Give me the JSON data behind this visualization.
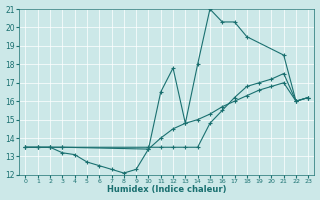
{
  "xlabel": "Humidex (Indice chaleur)",
  "xlim": [
    -0.5,
    23.5
  ],
  "ylim": [
    12,
    21
  ],
  "yticks": [
    12,
    13,
    14,
    15,
    16,
    17,
    18,
    19,
    20,
    21
  ],
  "xticks": [
    0,
    1,
    2,
    3,
    4,
    5,
    6,
    7,
    8,
    9,
    10,
    11,
    12,
    13,
    14,
    15,
    16,
    17,
    18,
    19,
    20,
    21,
    22,
    23
  ],
  "bg_color": "#cce8e8",
  "line_color": "#1a7070",
  "lines": [
    {
      "x": [
        0,
        1,
        2,
        3,
        10,
        11,
        12,
        13,
        14,
        15,
        16,
        17,
        18,
        21,
        22,
        23
      ],
      "y": [
        13.5,
        13.5,
        13.5,
        13.5,
        13.4,
        16.5,
        17.8,
        14.8,
        18.0,
        21.0,
        20.3,
        20.3,
        19.5,
        18.5,
        16.0,
        16.2
      ]
    },
    {
      "x": [
        0,
        1,
        2,
        3,
        10,
        11,
        12,
        13,
        14,
        15,
        16,
        17,
        18,
        19,
        20,
        21,
        22,
        23
      ],
      "y": [
        13.5,
        13.5,
        13.5,
        13.5,
        13.5,
        13.5,
        13.5,
        13.5,
        13.5,
        14.8,
        15.5,
        16.2,
        16.8,
        17.0,
        17.2,
        17.5,
        16.0,
        16.2
      ]
    },
    {
      "x": [
        0,
        1,
        2,
        3,
        4,
        5,
        6,
        7,
        8,
        9,
        10,
        11,
        12,
        13,
        14,
        15,
        16,
        17,
        18,
        19,
        20,
        21,
        22,
        23
      ],
      "y": [
        13.5,
        13.5,
        13.5,
        13.2,
        13.1,
        12.7,
        12.5,
        12.3,
        12.1,
        12.3,
        13.4,
        14.0,
        14.5,
        14.8,
        15.0,
        15.3,
        15.7,
        16.0,
        16.3,
        16.6,
        16.8,
        17.0,
        16.0,
        16.2
      ]
    }
  ]
}
